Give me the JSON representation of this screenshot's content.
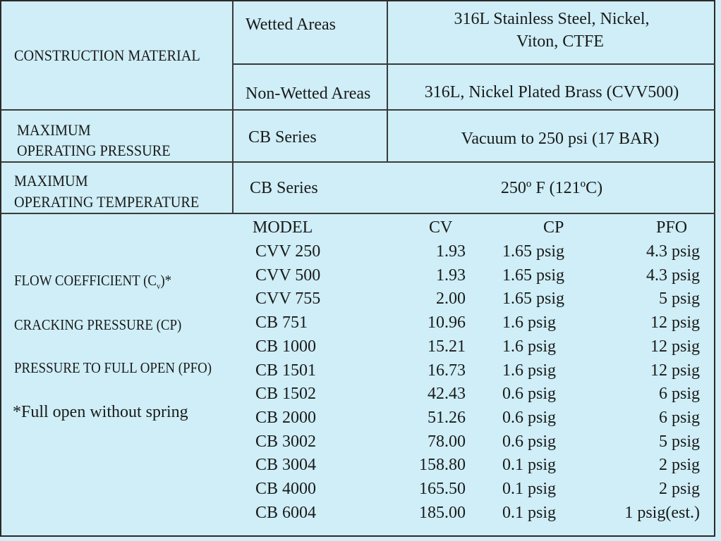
{
  "construction": {
    "heading": "CONSTRUCTION MATERIAL",
    "wetted_label": "Wetted Areas",
    "wetted_value_line1": "316L Stainless  Steel,  Nickel,",
    "wetted_value_line2": "Viton, CTFE",
    "nonwetted_label": "Non-Wetted Areas",
    "nonwetted_value": "316L, Nickel Plated Brass (CVV500)"
  },
  "pressure": {
    "heading_line1": "MAXIMUM",
    "heading_line2": "OPERATING  PRESSURE",
    "series": "CB Series",
    "value": "Vacuum to 250 psi (17 BAR)"
  },
  "temperature": {
    "heading_line1": "MAXIMUM",
    "heading_line2": "OPERATING TEMPERATURE",
    "series": "CB Series",
    "value": "250º F (121ºC)"
  },
  "flow": {
    "label_flow": "FLOW COEFFICIENT  (C",
    "label_flow_sub": "v",
    "label_flow_end": ")*",
    "label_cp": "CRACKING PRESSURE (CP)",
    "label_pfo": "PRESSURE TO FULL OPEN (PFO)",
    "footnote": "*Full open without spring",
    "columns": [
      "MODEL",
      "CV",
      "CP",
      "PFO"
    ],
    "rows": [
      {
        "model": "CVV 250",
        "cv": "1.93",
        "cp": "1.65 psig",
        "pfo": "4.3 psig"
      },
      {
        "model": "CVV 500",
        "cv": "1.93",
        "cp": "1.65  psig",
        "pfo": "4.3  psig"
      },
      {
        "model": "CVV 755",
        "cv": "2.00",
        "cp": "1.65  psig",
        "pfo": "5  psig"
      },
      {
        "model": "CB 751",
        "cv": "10.96",
        "cp": "1.6  psig",
        "pfo": "12  psig"
      },
      {
        "model": "CB 1000",
        "cv": "15.21",
        "cp": "1.6  psig",
        "pfo": "12  psig"
      },
      {
        "model": "CB 1501",
        "cv": "16.73",
        "cp": "1.6  psig",
        "pfo": "12  psig"
      },
      {
        "model": "CB 1502",
        "cv": "42.43",
        "cp": "0.6  psig",
        "pfo": "6  psig"
      },
      {
        "model": "CB 2000",
        "cv": "51.26",
        "cp": "0.6  psig",
        "pfo": "6  psig"
      },
      {
        "model": "CB 3002",
        "cv": "78.00",
        "cp": "0.6  psig",
        "pfo": "5 psig"
      },
      {
        "model": "CB 3004",
        "cv": "158.80",
        "cp": "0.1  psig",
        "pfo": "2  psig"
      },
      {
        "model": "CB 4000",
        "cv": "165.50",
        "cp": "0.1  psig",
        "pfo": "2  psig"
      },
      {
        "model": "CB 6004",
        "cv": "185.00",
        "cp": "0.1  psig",
        "pfo": "1 psig(est.)"
      }
    ]
  },
  "colors": {
    "background": "#cfeef7",
    "lines": "#3a3a3a",
    "text": "#1a1a1a"
  }
}
